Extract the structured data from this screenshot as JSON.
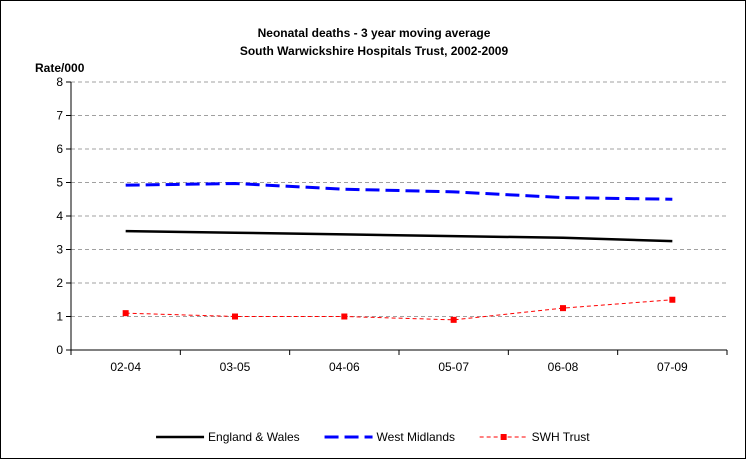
{
  "chart_data": {
    "type": "line",
    "title": "Neonatal deaths - 3 year moving average",
    "subtitle": "South Warwickshire Hospitals Trust, 2002-2009",
    "ylabel": "Rate/000",
    "xlabel": "",
    "categories": [
      "02-04",
      "03-05",
      "04-06",
      "05-07",
      "06-08",
      "07-09"
    ],
    "ylim": [
      0,
      8
    ],
    "yticks": [
      0,
      1,
      2,
      3,
      4,
      5,
      6,
      7,
      8
    ],
    "grid": "horizontal-dashed",
    "legend_position": "bottom",
    "series": [
      {
        "name": "England & Wales",
        "values": [
          3.55,
          3.5,
          3.45,
          3.4,
          3.35,
          3.25
        ],
        "color": "#000000",
        "style": "solid",
        "marker": "none"
      },
      {
        "name": "West Midlands",
        "values": [
          4.92,
          4.97,
          4.8,
          4.72,
          4.55,
          4.5
        ],
        "color": "#0000ff",
        "style": "dashed",
        "marker": "none"
      },
      {
        "name": "SWH Trust",
        "values": [
          1.1,
          1.0,
          1.0,
          0.9,
          1.25,
          1.5
        ],
        "color": "#ff0000",
        "style": "thin-dashed",
        "marker": "square"
      }
    ]
  }
}
